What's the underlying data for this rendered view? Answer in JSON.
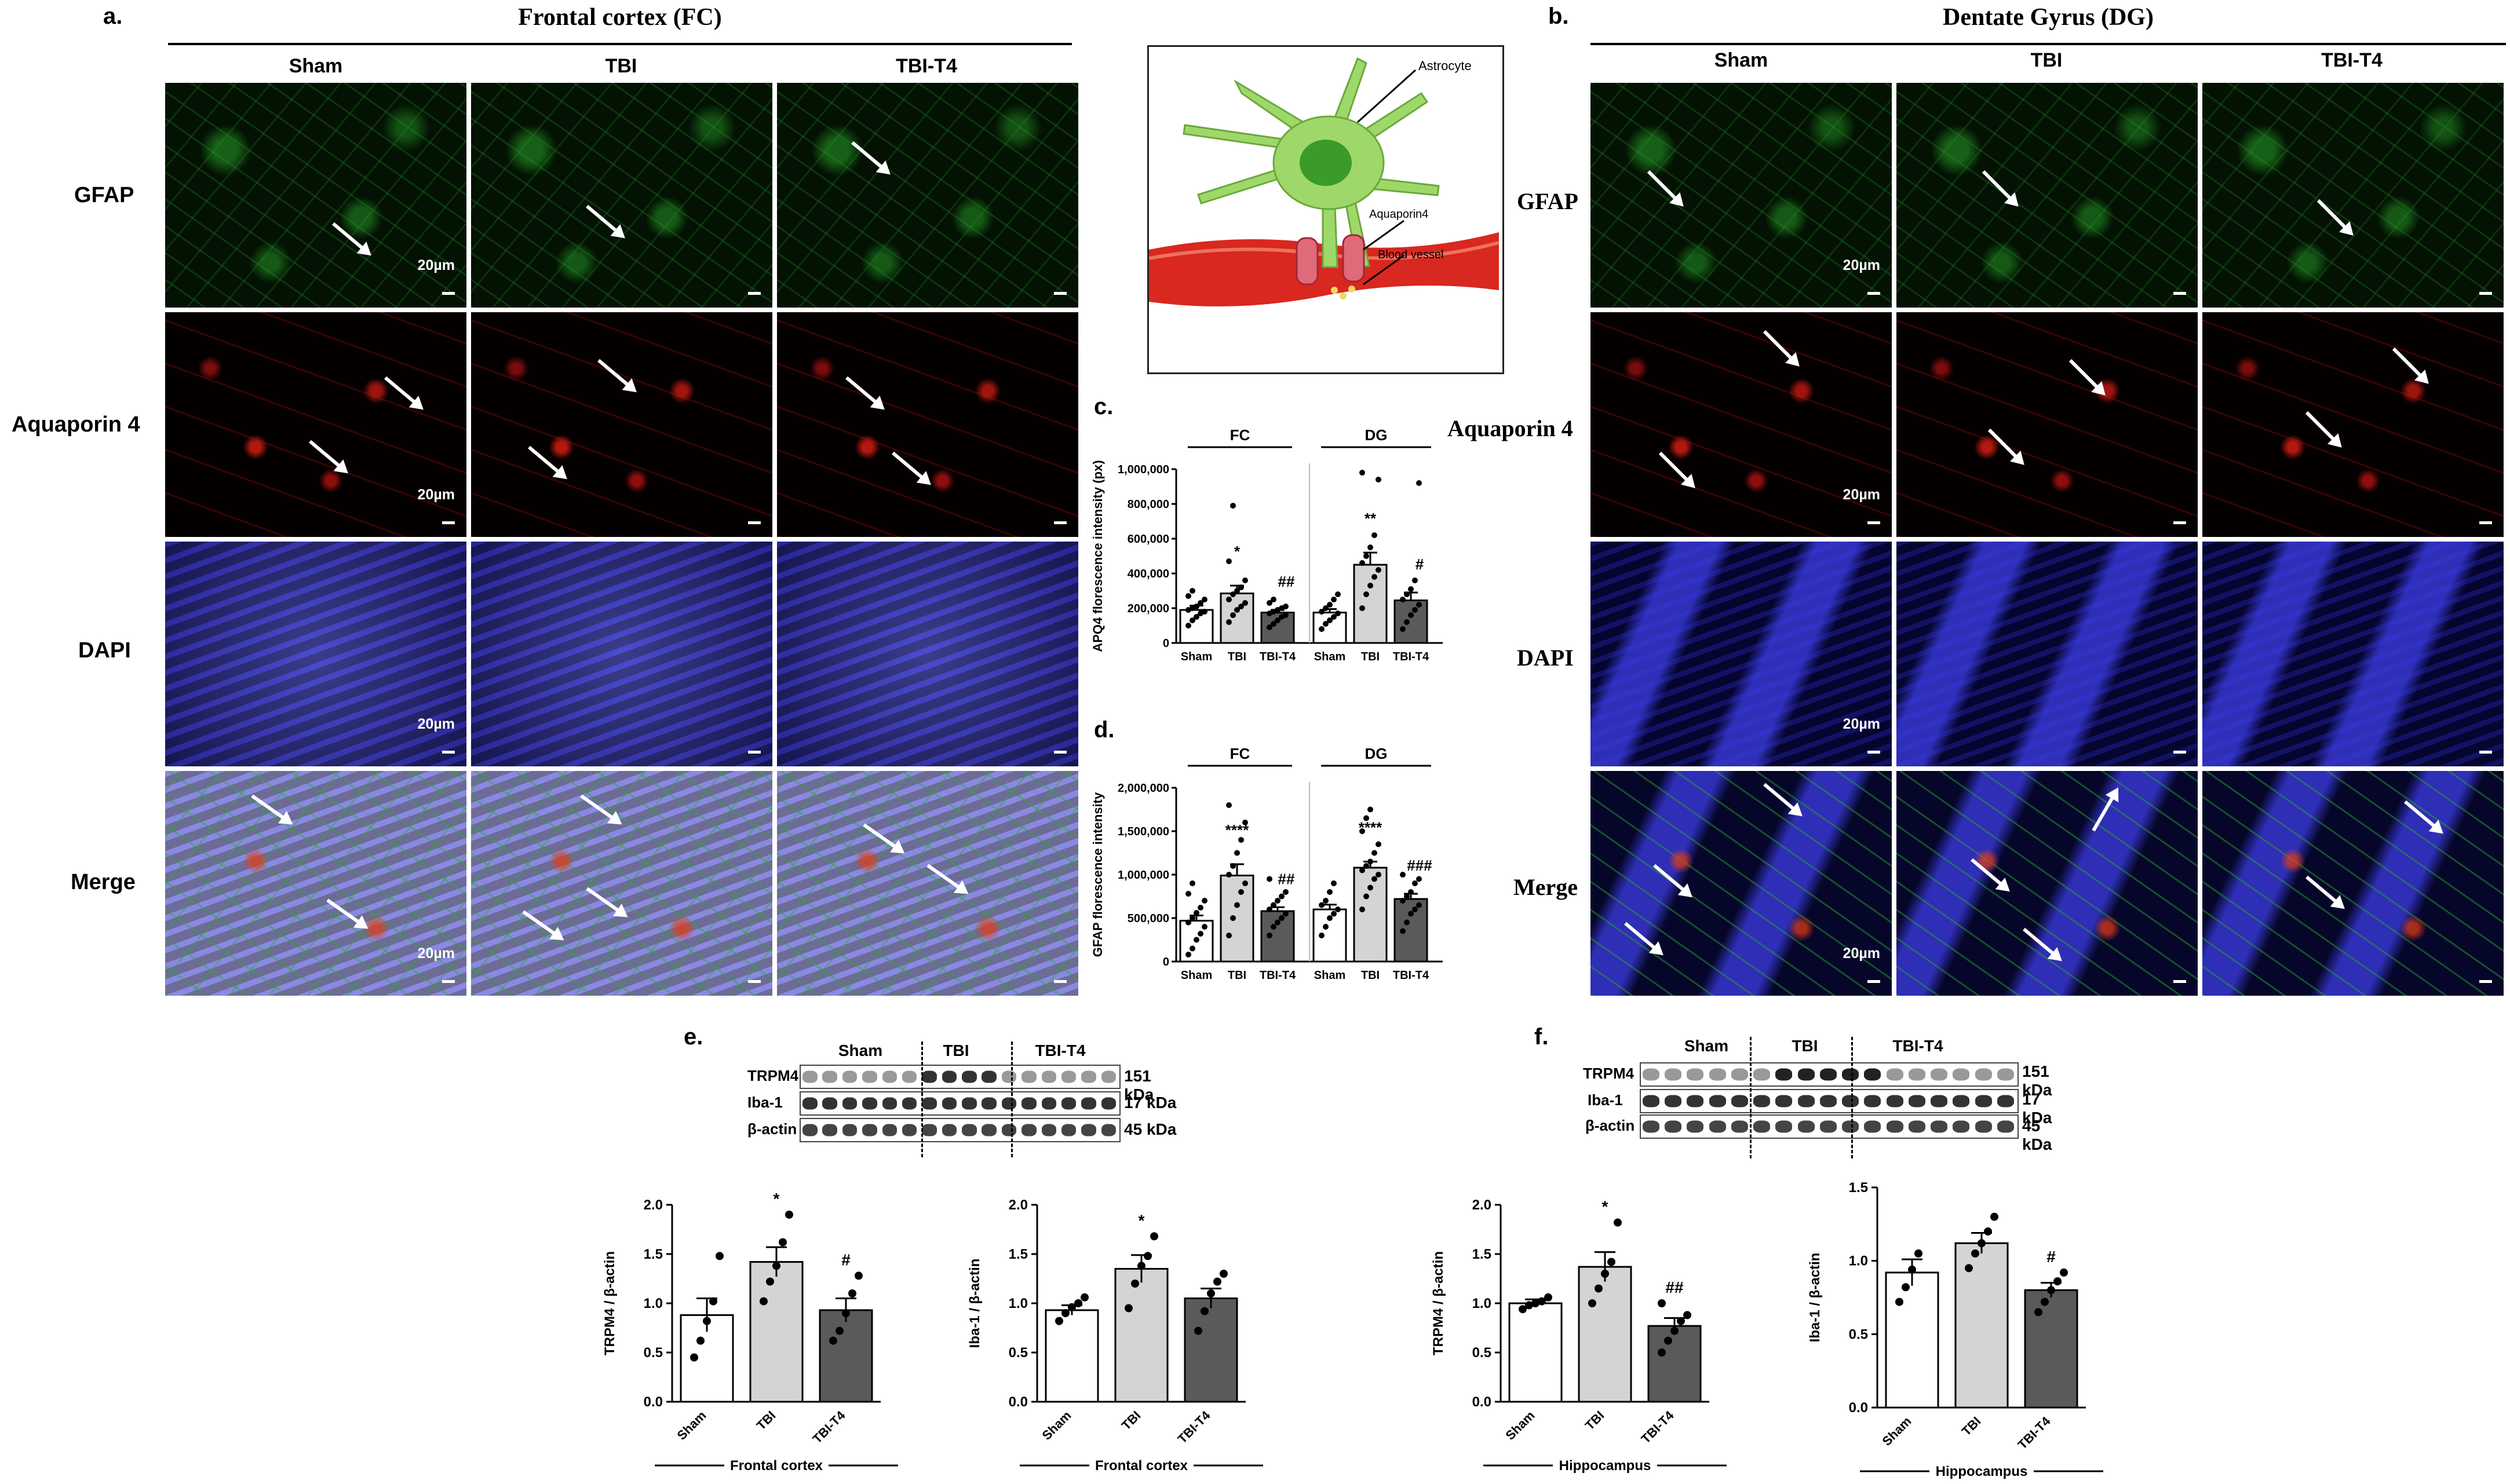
{
  "panels": {
    "a": "a.",
    "b": "b.",
    "c": "c.",
    "d": "d.",
    "e": "e.",
    "f": "f."
  },
  "fc_title": "Frontal cortex (FC)",
  "dg_title": "Dentate Gyrus (DG)",
  "groups": [
    "Sham",
    "TBI",
    "TBI-T4"
  ],
  "row_labels": {
    "gfap": "GFAP",
    "aqp4": "Aquaporin 4",
    "dapi": "DAPI",
    "merge": "Merge"
  },
  "scale_bar": "20µm",
  "diagram": {
    "astrocyte": "Astrocyte",
    "aquaporin": "Aquaporin4",
    "vessel": "Blood vessel"
  },
  "blot_e": {
    "rows": [
      "TRPM4",
      "Iba-1",
      "β-actin"
    ],
    "kda": [
      "151 kDa",
      "17 kDa",
      "45 kDa"
    ],
    "groups": [
      "Sham",
      "TBI",
      "TBI-T4"
    ]
  },
  "blot_f": {
    "rows": [
      "TRPM4",
      "Iba-1",
      "β-actin"
    ],
    "kda": [
      "151 kDa",
      "17 kDa",
      "45 kDa"
    ],
    "groups": [
      "Sham",
      "TBI",
      "TBI-T4"
    ]
  },
  "chart_data": [
    {
      "id": "c",
      "type": "bar",
      "ylabel": "APQ4 florescence intensity (px)",
      "groups": [
        "FC",
        "DG"
      ],
      "categories": [
        "Sham",
        "TBI",
        "TBI-T4",
        "Sham",
        "TBI",
        "TBI-T4"
      ],
      "values": [
        190000,
        285000,
        175000,
        175000,
        450000,
        245000
      ],
      "sem": [
        25000,
        45000,
        15000,
        20000,
        70000,
        45000
      ],
      "points": [
        [
          100000,
          130000,
          150000,
          170000,
          180000,
          190000,
          200000,
          210000,
          230000,
          250000,
          270000,
          300000
        ],
        [
          120000,
          160000,
          190000,
          210000,
          230000,
          250000,
          280000,
          300000,
          320000,
          360000,
          470000,
          790000
        ],
        [
          90000,
          110000,
          130000,
          150000,
          160000,
          170000,
          180000,
          190000,
          200000,
          210000,
          230000,
          250000
        ],
        [
          80000,
          110000,
          130000,
          150000,
          170000,
          180000,
          200000,
          220000,
          250000,
          280000
        ],
        [
          200000,
          280000,
          330000,
          380000,
          420000,
          460000,
          500000,
          550000,
          620000,
          940000,
          980000
        ],
        [
          80000,
          120000,
          160000,
          190000,
          220000,
          250000,
          280000,
          310000,
          360000,
          920000
        ]
      ],
      "annotations": [
        "",
        "*",
        "##",
        "",
        "**",
        "#"
      ],
      "ylim": [
        0,
        1000000
      ],
      "yticks": [
        "0",
        "200,000",
        "400,000",
        "600,000",
        "800,000",
        "1,000,000"
      ]
    },
    {
      "id": "d",
      "type": "bar",
      "ylabel": "GFAP florescence intensity",
      "groups": [
        "FC",
        "DG"
      ],
      "categories": [
        "Sham",
        "TBI",
        "TBI-T4",
        "Sham",
        "TBI",
        "TBI-T4"
      ],
      "values": [
        470000,
        990000,
        580000,
        600000,
        1080000,
        720000
      ],
      "sem": [
        60000,
        130000,
        45000,
        55000,
        70000,
        60000
      ],
      "points": [
        [
          80000,
          150000,
          250000,
          320000,
          400000,
          450000,
          500000,
          560000,
          620000,
          700000,
          780000,
          900000
        ],
        [
          300000,
          500000,
          650000,
          800000,
          900000,
          1000000,
          1100000,
          1250000,
          1400000,
          1600000,
          1800000
        ],
        [
          300000,
          400000,
          450000,
          500000,
          550000,
          600000,
          650000,
          700000,
          750000,
          800000,
          950000
        ],
        [
          300000,
          400000,
          500000,
          550000,
          600000,
          650000,
          700000,
          800000,
          900000
        ],
        [
          600000,
          750000,
          850000,
          950000,
          1000000,
          1050000,
          1100000,
          1150000,
          1250000,
          1350000,
          1500000,
          1650000,
          1750000
        ],
        [
          350000,
          450000,
          550000,
          600000,
          650000,
          700000,
          750000,
          800000,
          900000,
          950000,
          1000000
        ]
      ],
      "annotations": [
        "",
        "****",
        "##",
        "",
        "****",
        "###"
      ],
      "ylim": [
        0,
        2000000
      ],
      "yticks": [
        "0",
        "500,000",
        "1,000,000",
        "1,500,000",
        "2,000,000"
      ]
    },
    {
      "id": "e1",
      "type": "bar",
      "ylabel": "TRPM4 / β-actin",
      "xlabel": "Frontal cortex",
      "categories": [
        "Sham",
        "TBI",
        "TBI-T4"
      ],
      "values": [
        0.88,
        1.42,
        0.93
      ],
      "sem": [
        0.17,
        0.15,
        0.12
      ],
      "points": [
        [
          0.45,
          0.62,
          0.82,
          1.02,
          1.48
        ],
        [
          1.02,
          1.22,
          1.38,
          1.62,
          1.9
        ],
        [
          0.62,
          0.72,
          0.9,
          1.1,
          1.28
        ]
      ],
      "annotations": [
        "",
        "*",
        "#"
      ],
      "ylim": [
        0,
        2.0
      ],
      "yticks": [
        "0.0",
        "0.5",
        "1.0",
        "1.5",
        "2.0"
      ]
    },
    {
      "id": "e2",
      "type": "bar",
      "ylabel": "Iba-1 / β-actin",
      "xlabel": "Frontal cortex",
      "categories": [
        "Sham",
        "TBI",
        "TBI-T4"
      ],
      "values": [
        0.93,
        1.35,
        1.05
      ],
      "sem": [
        0.05,
        0.14,
        0.1
      ],
      "points": [
        [
          0.82,
          0.9,
          0.96,
          1.0,
          1.06
        ],
        [
          0.95,
          1.2,
          1.38,
          1.48,
          1.68
        ],
        [
          0.72,
          0.92,
          1.1,
          1.22,
          1.3
        ]
      ],
      "annotations": [
        "",
        "*",
        ""
      ],
      "ylim": [
        0,
        2.0
      ],
      "yticks": [
        "0.0",
        "0.5",
        "1.0",
        "1.5",
        "2.0"
      ]
    },
    {
      "id": "f1",
      "type": "bar",
      "ylabel": "TRPM4 / β-actin",
      "xlabel": "Hippocampus",
      "categories": [
        "Sham",
        "TBI",
        "TBI-T4"
      ],
      "values": [
        1.0,
        1.37,
        0.77
      ],
      "sem": [
        0.04,
        0.15,
        0.08
      ],
      "points": [
        [
          0.94,
          0.98,
          1.0,
          1.02,
          1.06
        ],
        [
          1.0,
          1.15,
          1.3,
          1.42,
          1.82
        ],
        [
          0.5,
          0.62,
          0.72,
          0.82,
          0.88,
          1.0
        ]
      ],
      "annotations": [
        "",
        "*",
        "##"
      ],
      "ylim": [
        0,
        2.0
      ],
      "yticks": [
        "0.0",
        "0.5",
        "1.0",
        "1.5",
        "2.0"
      ]
    },
    {
      "id": "f2",
      "type": "bar",
      "ylabel": "Iba-1 / β-actin",
      "xlabel": "Hippocampus",
      "categories": [
        "Sham",
        "TBI",
        "TBI-T4"
      ],
      "values": [
        0.92,
        1.12,
        0.8
      ],
      "sem": [
        0.09,
        0.07,
        0.05
      ],
      "points": [
        [
          0.72,
          0.82,
          0.94,
          1.05
        ],
        [
          0.95,
          1.05,
          1.12,
          1.2,
          1.3
        ],
        [
          0.65,
          0.72,
          0.8,
          0.86,
          0.92
        ]
      ],
      "annotations": [
        "",
        "",
        "#"
      ],
      "ylim": [
        0,
        1.5
      ],
      "yticks": [
        "0.0",
        "0.5",
        "1.0",
        "1.5"
      ]
    }
  ]
}
